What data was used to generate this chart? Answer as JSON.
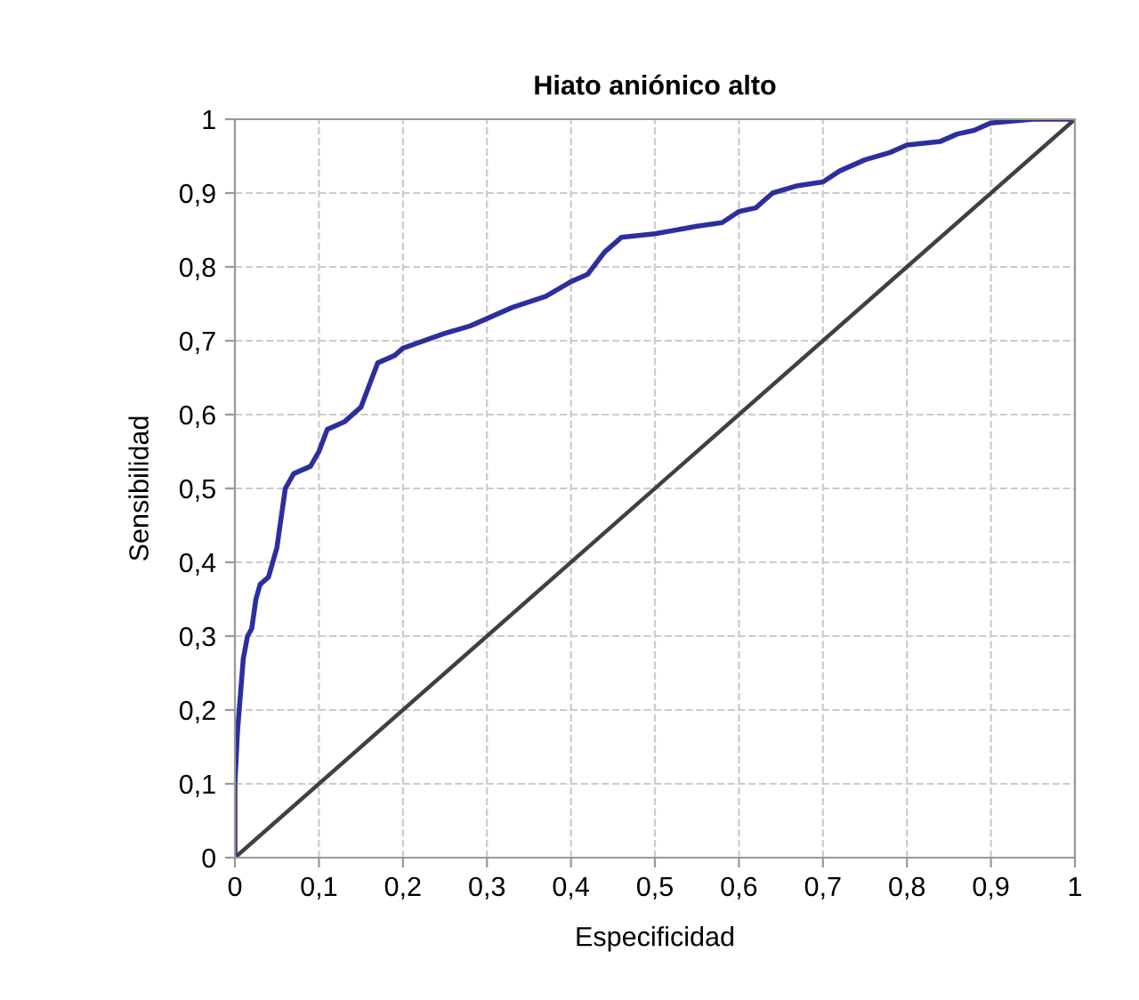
{
  "chart_data": {
    "type": "line",
    "title": "Hiato aniónico alto",
    "xlabel": "Especificidad",
    "ylabel": "Sensibilidad",
    "xlim": [
      0,
      1
    ],
    "ylim": [
      0,
      1
    ],
    "xticks": [
      0,
      {
        "value": 0.1,
        "label": "0,1"
      },
      {
        "value": 0.2,
        "label": "0,2"
      },
      {
        "value": 0.3,
        "label": "0,3"
      },
      {
        "value": 0.4,
        "label": "0,4"
      },
      {
        "value": 0.5,
        "label": "0,5"
      },
      {
        "value": 0.6,
        "label": "0,6"
      },
      {
        "value": 0.7,
        "label": "0,7"
      },
      {
        "value": 0.8,
        "label": "0,8"
      },
      {
        "value": 0.9,
        "label": "0,9"
      },
      1
    ],
    "yticks": [
      0,
      {
        "value": 0.1,
        "label": "0,1"
      },
      {
        "value": 0.2,
        "label": "0,2"
      },
      {
        "value": 0.3,
        "label": "0,3"
      },
      {
        "value": 0.4,
        "label": "0,4"
      },
      {
        "value": 0.5,
        "label": "0,5"
      },
      {
        "value": 0.6,
        "label": "0,6"
      },
      {
        "value": 0.7,
        "label": "0,7"
      },
      {
        "value": 0.8,
        "label": "0,8"
      },
      {
        "value": 0.9,
        "label": "0,9"
      },
      1
    ],
    "grid": true,
    "legend": false,
    "series": [
      {
        "color": "#2b2f9e",
        "x": [
          0,
          0,
          0.003,
          0.01,
          0.015,
          0.02,
          0.025,
          0.03,
          0.04,
          0.05,
          0.055,
          0.06,
          0.07,
          0.09,
          0.1,
          0.11,
          0.13,
          0.15,
          0.16,
          0.17,
          0.19,
          0.2,
          0.25,
          0.28,
          0.3,
          0.33,
          0.37,
          0.4,
          0.42,
          0.44,
          0.46,
          0.5,
          0.55,
          0.58,
          0.6,
          0.62,
          0.64,
          0.67,
          0.7,
          0.72,
          0.75,
          0.78,
          0.8,
          0.84,
          0.86,
          0.88,
          0.9,
          0.95,
          1
        ],
        "values": [
          0,
          0.1,
          0.17,
          0.27,
          0.3,
          0.31,
          0.35,
          0.37,
          0.38,
          0.42,
          0.46,
          0.5,
          0.52,
          0.53,
          0.55,
          0.58,
          0.59,
          0.61,
          0.64,
          0.67,
          0.68,
          0.69,
          0.71,
          0.72,
          0.73,
          0.745,
          0.76,
          0.78,
          0.79,
          0.82,
          0.84,
          0.845,
          0.855,
          0.86,
          0.875,
          0.88,
          0.9,
          0.91,
          0.915,
          0.93,
          0.945,
          0.955,
          0.965,
          0.97,
          0.98,
          0.985,
          0.995,
          1,
          1
        ]
      },
      {
        "color": "#404040",
        "x": [
          0,
          1
        ],
        "values": [
          0,
          1
        ]
      }
    ]
  }
}
